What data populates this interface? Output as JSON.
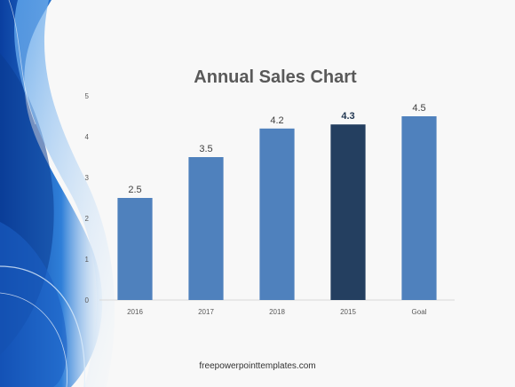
{
  "chart_data": {
    "type": "bar",
    "title": "Annual Sales Chart",
    "categories": [
      "2016",
      "2017",
      "2018",
      "2015",
      "Goal"
    ],
    "values": [
      2.5,
      3.5,
      4.2,
      4.3,
      4.5
    ],
    "data_labels": [
      "2.5",
      "3.5",
      "4.2",
      "4.3",
      "4.5"
    ],
    "highlight_index": 3,
    "ylim": [
      0,
      5
    ],
    "yticks": [
      "0",
      "1",
      "2",
      "3",
      "4",
      "5"
    ],
    "xlabel": "",
    "ylabel": "",
    "grid": false,
    "legend": "none",
    "colors": {
      "bar": "#4f81bd",
      "highlight": "#243f60"
    }
  },
  "footer": {
    "text": "freepowerpointtemplates.com"
  }
}
